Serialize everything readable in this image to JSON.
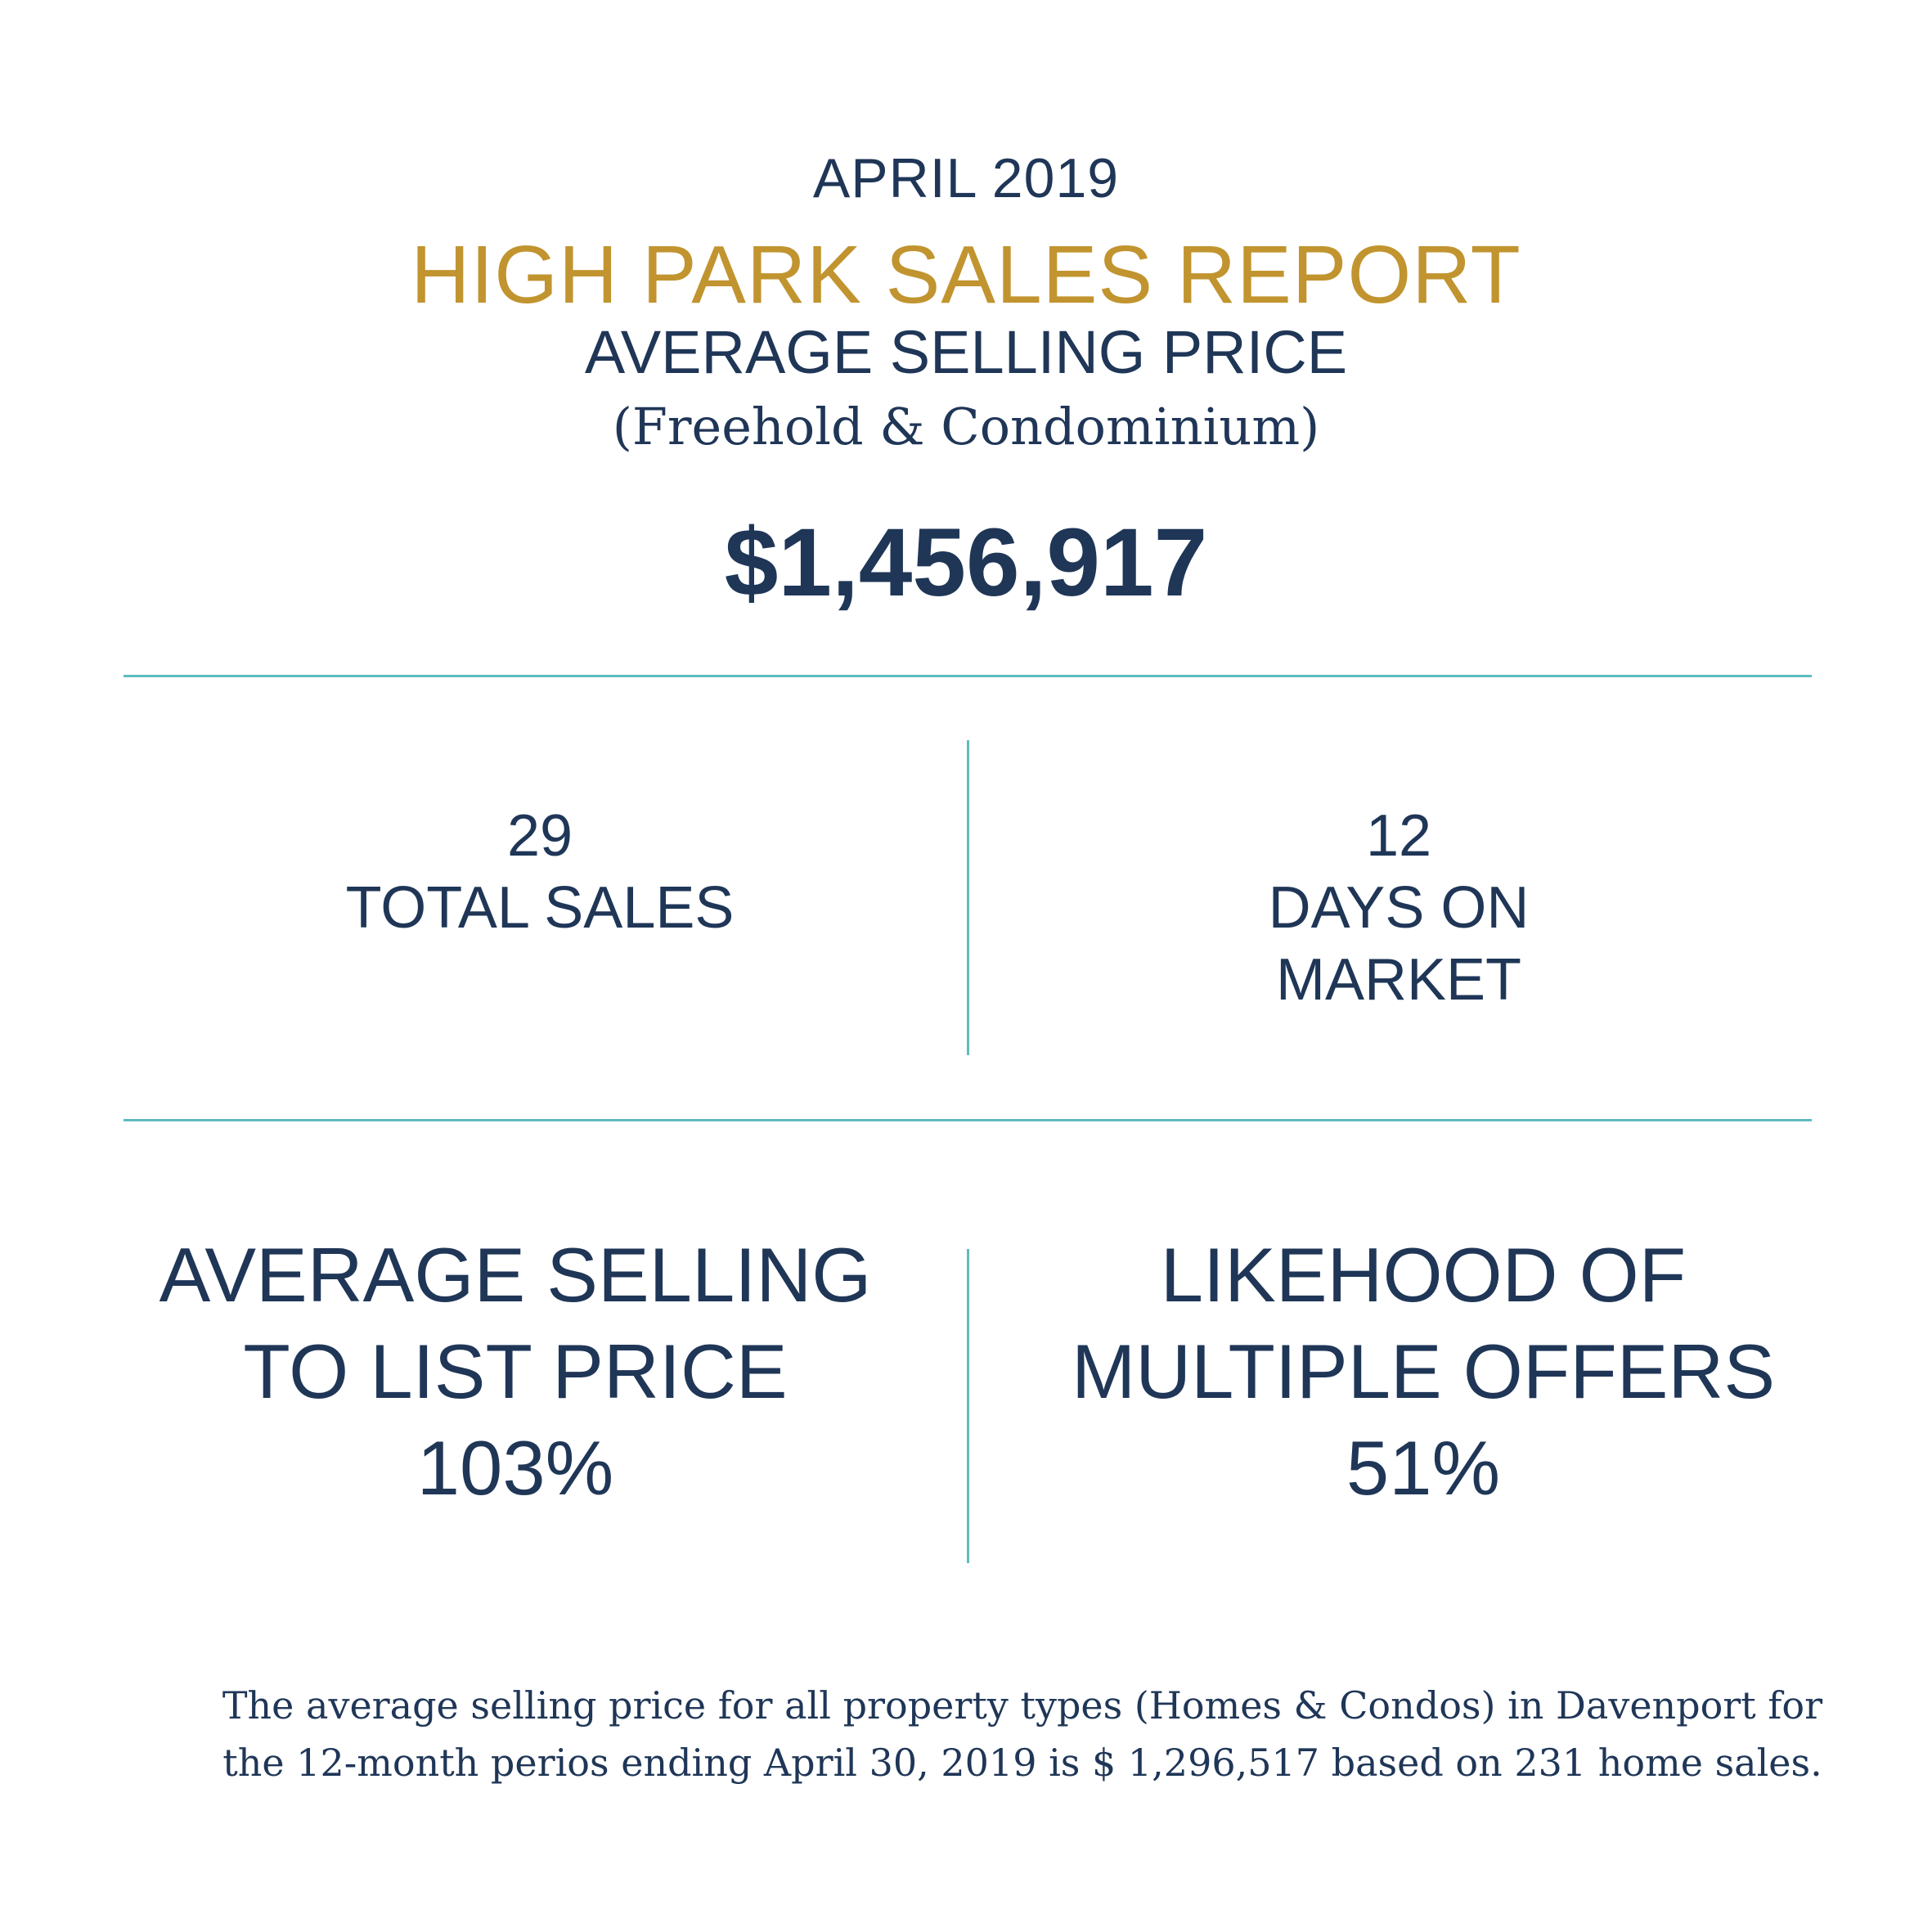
{
  "header": {
    "month": "APRIL 2019",
    "report_title": "HIGH PARK SALES REPORT",
    "subtitle": "AVERAGE SELLING PRICE",
    "property_types": "(Freehold & Condominium)",
    "average_price": "$1,456,917"
  },
  "stats": {
    "total_sales": {
      "value": "29",
      "label": "TOTAL SALES"
    },
    "days_on_market": {
      "value": "12",
      "label_line1": "DAYS ON",
      "label_line2": "MARKET"
    },
    "sell_to_list": {
      "label_line1": "AVERAGE SELLING",
      "label_line2": "TO LIST PRICE",
      "value": "103%"
    },
    "multiple_offers": {
      "label_line1": "LIKEHOOD OF",
      "label_line2": "MULTIPLE OFFERS",
      "value": "51%"
    }
  },
  "footnote": {
    "line1": "The average selling price for all property types (Homes & Condos) in Davenport for",
    "line2": "the 12-month perios ending April 30, 2019 is $ 1,296,517 based on 231 home sales."
  },
  "colors": {
    "navy": "#1f3657",
    "gold": "#c1942f",
    "teal_rule": "#5ebbc0",
    "background": "#ffffff"
  }
}
